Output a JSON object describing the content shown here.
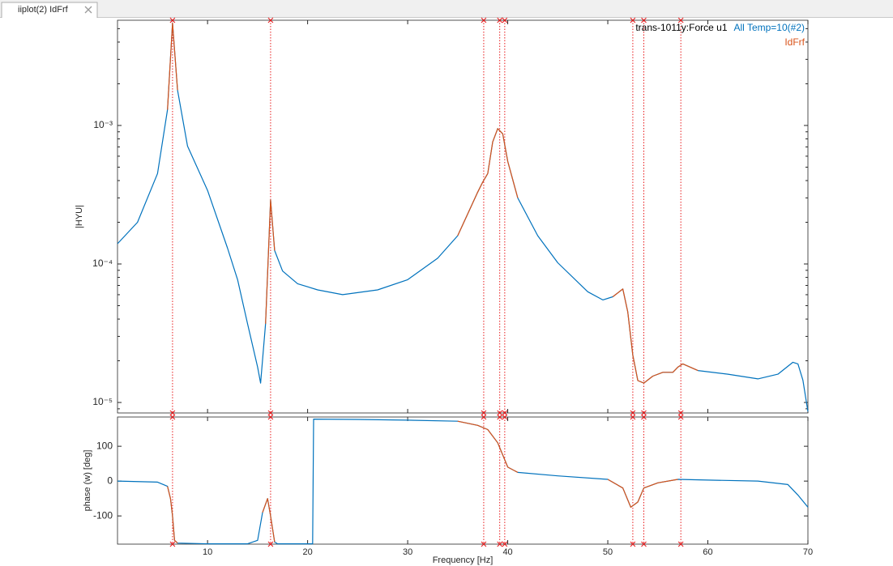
{
  "tab": {
    "title": "iiplot(2) IdFrf"
  },
  "chart_data": [
    {
      "type": "line",
      "ylabel": "|HYU|",
      "ylog": true,
      "legend_title": "trans-1011y:Force u1",
      "legend": "top-right",
      "xlim": [
        1,
        70
      ],
      "ylim": [
        8.4e-06,
        0.00575
      ],
      "yticks": [
        {
          "value": 0.001,
          "label": "10⁻³"
        },
        {
          "value": 0.0001,
          "label": "10⁻⁴"
        },
        {
          "value": 1e-05,
          "label": "10⁻⁵"
        }
      ],
      "poles": [
        6.5,
        16.3,
        37.6,
        39.2,
        39.7,
        52.5,
        53.6,
        57.3
      ],
      "pole_color": "#e8191b",
      "x": [
        1,
        3,
        5,
        6,
        6.5,
        7,
        8,
        10,
        12,
        13,
        14,
        15,
        15.3,
        15.8,
        16.3,
        16.7,
        17.5,
        19,
        21,
        23.5,
        27,
        30,
        33,
        35,
        37,
        37.5,
        38,
        38.5,
        39,
        39.5,
        40,
        41,
        43,
        45,
        48,
        49.5,
        50.5,
        51.5,
        52,
        52.5,
        53,
        53.6,
        54.5,
        55.5,
        56.5,
        57,
        57.5,
        59,
        62,
        65,
        67,
        68.5,
        69,
        69.5,
        70
      ],
      "series": [
        {
          "name": "All Temp=10(#2)",
          "color": "#0072bd",
          "values": [
            0.00014,
            0.0002,
            0.00045,
            0.0013,
            0.0055,
            0.0018,
            0.00071,
            0.00034,
            0.00013,
            7.7e-05,
            3.7e-05,
            1.8e-05,
            1.38e-05,
            3.7e-05,
            0.00029,
            0.000125,
            8.9e-05,
            7.2e-05,
            6.5e-05,
            6e-05,
            6.5e-05,
            7.7e-05,
            0.00011,
            0.00016,
            0.00033,
            0.00039,
            0.00045,
            0.00076,
            0.00095,
            0.00087,
            0.00055,
            0.0003,
            0.00016,
            0.000102,
            6.3e-05,
            5.5e-05,
            5.8e-05,
            6.6e-05,
            4.5e-05,
            2.2e-05,
            1.44e-05,
            1.38e-05,
            1.55e-05,
            1.65e-05,
            1.65e-05,
            1.8e-05,
            1.9e-05,
            1.7e-05,
            1.6e-05,
            1.48e-05,
            1.6e-05,
            1.95e-05,
            1.9e-05,
            1.45e-05,
            8.6e-06
          ]
        },
        {
          "name": "IdFrf",
          "color": "#d95319",
          "values": [
            null,
            null,
            null,
            0.0013,
            0.0055,
            0.0018,
            null,
            null,
            null,
            null,
            null,
            null,
            null,
            3.7e-05,
            0.00029,
            0.000125,
            null,
            null,
            null,
            null,
            null,
            null,
            null,
            0.00016,
            0.00033,
            0.00039,
            0.00045,
            0.00076,
            0.00095,
            0.00087,
            0.00055,
            0.0003,
            null,
            null,
            null,
            null,
            5.8e-05,
            6.6e-05,
            4.5e-05,
            2.2e-05,
            1.44e-05,
            1.38e-05,
            1.55e-05,
            1.65e-05,
            1.65e-05,
            1.8e-05,
            1.9e-05,
            1.7e-05,
            null,
            null,
            null,
            null,
            null,
            null,
            null
          ]
        }
      ]
    },
    {
      "type": "line",
      "ylabel": "phase (w) [deg]",
      "xlabel": "Frequency [Hz]",
      "xlim": [
        1,
        70
      ],
      "ylim": [
        -181,
        184
      ],
      "xticks": [
        10,
        20,
        30,
        40,
        50,
        60,
        70
      ],
      "yticks": [
        100,
        0,
        -100
      ],
      "poles": [
        6.5,
        16.3,
        37.6,
        39.2,
        39.7,
        52.5,
        53.6,
        57.3
      ],
      "pole_color": "#e8191b",
      "x": [
        1,
        5,
        6,
        6.3,
        6.5,
        6.7,
        7,
        10,
        14,
        15,
        15.5,
        16,
        16.3,
        16.7,
        17,
        20.5,
        20.6,
        25,
        30,
        35,
        37,
        38,
        39,
        40,
        41,
        45,
        50,
        51.5,
        52.3,
        53,
        53.6,
        55,
        57,
        60,
        65,
        68,
        69,
        70
      ],
      "series": [
        {
          "name": "All Temp=10(#2)",
          "color": "#0072bd",
          "values": [
            0,
            -3,
            -15,
            -50,
            -100,
            -170,
            -178,
            -180,
            -180,
            -170,
            -90,
            -50,
            -100,
            -175,
            -180,
            -180,
            178,
            177,
            175,
            172,
            160,
            148,
            110,
            40,
            25,
            15,
            5,
            -20,
            -75,
            -60,
            -20,
            -5,
            5,
            3,
            0,
            -10,
            -40,
            -75
          ]
        },
        {
          "name": "IdFrf",
          "color": "#d95319",
          "values": [
            null,
            null,
            -15,
            -50,
            -100,
            -170,
            -178,
            null,
            null,
            null,
            -90,
            -50,
            -100,
            -175,
            null,
            null,
            null,
            null,
            null,
            172,
            160,
            148,
            110,
            40,
            25,
            null,
            5,
            -20,
            -75,
            -60,
            -20,
            -5,
            5,
            null,
            null,
            null,
            null,
            null
          ]
        }
      ]
    }
  ]
}
